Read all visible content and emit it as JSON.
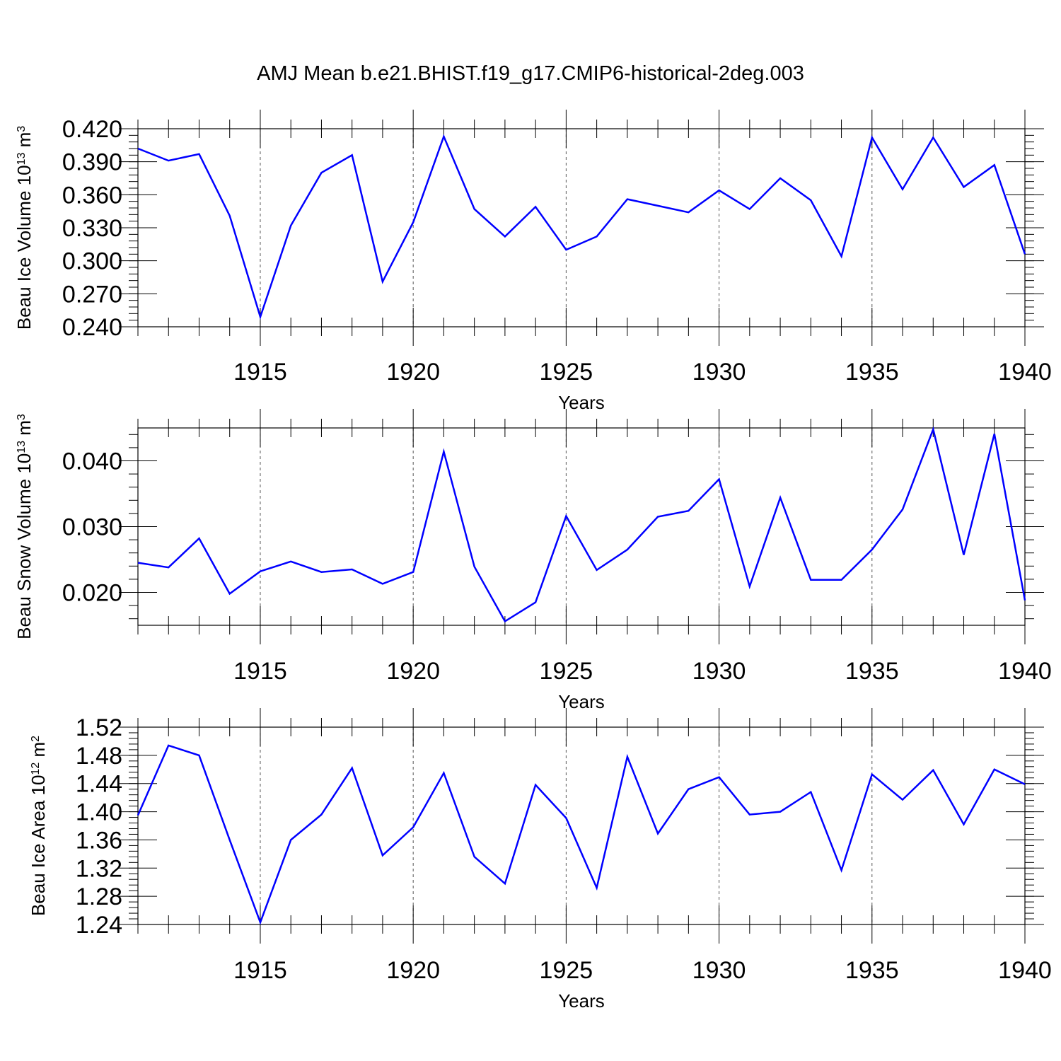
{
  "title": "AMJ Mean b.e21.BHIST.f19_g17.CMIP6-historical-2deg.003",
  "colors": {
    "line": "#0000ff",
    "axis": "#000000",
    "grid": "#555555"
  },
  "chart_data": [
    {
      "type": "line",
      "ylabel": "Beau Ice Volume 10",
      "ylabel_exponent": "13",
      "ylabel_unit": "m",
      "ylabel_unit_power": "3",
      "xlabel": "Years",
      "xlim": [
        1911,
        1940
      ],
      "ylim": [
        0.24,
        0.42
      ],
      "yticks": [
        0.24,
        0.27,
        0.3,
        0.33,
        0.36,
        0.39,
        0.42
      ],
      "ytick_labels": [
        "0.240",
        "0.270",
        "0.300",
        "0.330",
        "0.360",
        "0.390",
        "0.420"
      ],
      "yminor_step": 0.006,
      "xticks": [
        1915,
        1920,
        1925,
        1930,
        1935,
        1940
      ],
      "xtick_labels": [
        "1915",
        "1920",
        "1925",
        "1930",
        "1935",
        "1940"
      ],
      "grid": "dashed vertical at major x ticks",
      "x": [
        1911,
        1912,
        1913,
        1914,
        1915,
        1916,
        1917,
        1918,
        1919,
        1920,
        1921,
        1922,
        1923,
        1924,
        1925,
        1926,
        1927,
        1928,
        1929,
        1930,
        1931,
        1932,
        1933,
        1934,
        1935,
        1936,
        1937,
        1938,
        1939,
        1940
      ],
      "series": [
        {
          "name": "Beau Ice Volume",
          "values": [
            0.402,
            0.391,
            0.397,
            0.341,
            0.249,
            0.332,
            0.38,
            0.396,
            0.281,
            0.335,
            0.413,
            0.347,
            0.322,
            0.349,
            0.31,
            0.322,
            0.356,
            0.35,
            0.344,
            0.364,
            0.347,
            0.375,
            0.355,
            0.304,
            0.412,
            0.365,
            0.412,
            0.367,
            0.387,
            0.306
          ]
        }
      ]
    },
    {
      "type": "line",
      "ylabel": "Beau Snow Volume 10",
      "ylabel_exponent": "13",
      "ylabel_unit": "m",
      "ylabel_unit_power": "3",
      "xlabel": "Years",
      "xlim": [
        1911,
        1940
      ],
      "ylim": [
        0.015,
        0.045
      ],
      "yticks": [
        0.02,
        0.03,
        0.04
      ],
      "ytick_labels": [
        "0.020",
        "0.030",
        "0.040"
      ],
      "yminor_step": 0.002,
      "xticks": [
        1915,
        1920,
        1925,
        1930,
        1935,
        1940
      ],
      "xtick_labels": [
        "1915",
        "1920",
        "1925",
        "1930",
        "1935",
        "1940"
      ],
      "grid": "dashed vertical at major x ticks",
      "x": [
        1911,
        1912,
        1913,
        1914,
        1915,
        1916,
        1917,
        1918,
        1919,
        1920,
        1921,
        1922,
        1923,
        1924,
        1925,
        1926,
        1927,
        1928,
        1929,
        1930,
        1931,
        1932,
        1933,
        1934,
        1935,
        1936,
        1937,
        1938,
        1939,
        1940
      ],
      "series": [
        {
          "name": "Beau Snow Volume",
          "values": [
            0.0245,
            0.0238,
            0.0282,
            0.0198,
            0.0232,
            0.0247,
            0.0231,
            0.0235,
            0.0213,
            0.0231,
            0.0414,
            0.0239,
            0.0156,
            0.0185,
            0.0316,
            0.0234,
            0.0265,
            0.0315,
            0.0324,
            0.0372,
            0.0209,
            0.0344,
            0.0219,
            0.0219,
            0.0265,
            0.0326,
            0.0448,
            0.0257,
            0.0441,
            0.0188
          ]
        }
      ]
    },
    {
      "type": "line",
      "ylabel": "Beau Ice Area 10",
      "ylabel_exponent": "12",
      "ylabel_unit": "m",
      "ylabel_unit_power": "2",
      "xlabel": "Years",
      "xlim": [
        1911,
        1940
      ],
      "ylim": [
        1.24,
        1.52
      ],
      "yticks": [
        1.24,
        1.28,
        1.32,
        1.36,
        1.4,
        1.44,
        1.48,
        1.52
      ],
      "ytick_labels": [
        "1.24",
        "1.28",
        "1.32",
        "1.36",
        "1.40",
        "1.44",
        "1.48",
        "1.52"
      ],
      "yminor_step": 0.008,
      "xticks": [
        1915,
        1920,
        1925,
        1930,
        1935,
        1940
      ],
      "xtick_labels": [
        "1915",
        "1920",
        "1925",
        "1930",
        "1935",
        "1940"
      ],
      "grid": "dashed vertical at major x ticks",
      "x": [
        1911,
        1912,
        1913,
        1914,
        1915,
        1916,
        1917,
        1918,
        1919,
        1920,
        1921,
        1922,
        1923,
        1924,
        1925,
        1926,
        1927,
        1928,
        1929,
        1930,
        1931,
        1932,
        1933,
        1934,
        1935,
        1936,
        1937,
        1938,
        1939,
        1940
      ],
      "series": [
        {
          "name": "Beau Ice Area",
          "values": [
            1.395,
            1.494,
            1.48,
            1.36,
            1.243,
            1.36,
            1.396,
            1.462,
            1.338,
            1.378,
            1.455,
            1.336,
            1.298,
            1.438,
            1.391,
            1.292,
            1.478,
            1.369,
            1.432,
            1.449,
            1.396,
            1.4,
            1.428,
            1.317,
            1.453,
            1.417,
            1.459,
            1.382,
            1.46,
            1.439
          ]
        }
      ]
    }
  ]
}
